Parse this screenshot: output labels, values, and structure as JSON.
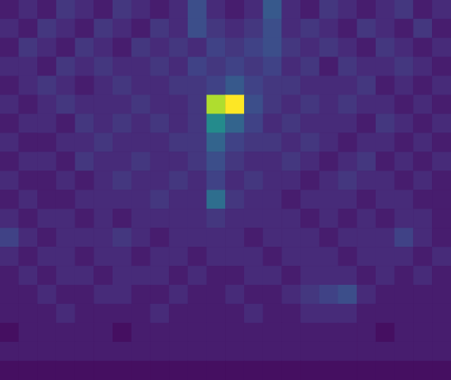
{
  "chart_data": {
    "type": "heatmap",
    "tick_labels": false,
    "zlim": [
      0,
      25
    ],
    "cells": [
      [
        2,
        3,
        2,
        4,
        3,
        2,
        4,
        3,
        2,
        3,
        6,
        3,
        2,
        3,
        7,
        3,
        2,
        4,
        3,
        2,
        3,
        4,
        2,
        3
      ],
      [
        3,
        2,
        4,
        3,
        2,
        4,
        3,
        2,
        4,
        3,
        6,
        4,
        3,
        4,
        6,
        3,
        4,
        3,
        2,
        4,
        3,
        2,
        4,
        2
      ],
      [
        2,
        4,
        3,
        2,
        4,
        3,
        2,
        4,
        3,
        4,
        3,
        5,
        4,
        5,
        6,
        4,
        3,
        4,
        3,
        2,
        4,
        3,
        2,
        3
      ],
      [
        3,
        3,
        2,
        4,
        3,
        4,
        3,
        3,
        4,
        3,
        5,
        4,
        5,
        4,
        5,
        3,
        4,
        2,
        4,
        3,
        3,
        4,
        3,
        2
      ],
      [
        2,
        3,
        4,
        3,
        2,
        3,
        4,
        3,
        3,
        4,
        4,
        5,
        7,
        5,
        4,
        4,
        3,
        3,
        3,
        4,
        2,
        3,
        2,
        3
      ],
      [
        3,
        2,
        3,
        4,
        3,
        3,
        3,
        4,
        3,
        3,
        4,
        22,
        25,
        6,
        4,
        3,
        4,
        3,
        4,
        3,
        3,
        2,
        3,
        2
      ],
      [
        2,
        3,
        3,
        2,
        4,
        3,
        4,
        3,
        4,
        3,
        4,
        12,
        8,
        5,
        3,
        4,
        3,
        3,
        3,
        2,
        4,
        3,
        2,
        3
      ],
      [
        3,
        2,
        2,
        3,
        3,
        4,
        3,
        3,
        3,
        4,
        4,
        8,
        5,
        4,
        4,
        3,
        4,
        3,
        2,
        3,
        3,
        2,
        3,
        2
      ],
      [
        2,
        3,
        3,
        2,
        4,
        3,
        3,
        4,
        3,
        3,
        4,
        6,
        4,
        3,
        3,
        4,
        3,
        2,
        3,
        4,
        2,
        3,
        2,
        3
      ],
      [
        3,
        2,
        2,
        3,
        2,
        3,
        4,
        3,
        3,
        4,
        3,
        5,
        3,
        4,
        3,
        3,
        2,
        3,
        4,
        3,
        3,
        2,
        3,
        2
      ],
      [
        2,
        3,
        2,
        2,
        3,
        3,
        3,
        3,
        4,
        3,
        3,
        9,
        4,
        3,
        3,
        2,
        3,
        3,
        3,
        2,
        3,
        3,
        2,
        2
      ],
      [
        3,
        2,
        3,
        3,
        2,
        3,
        2,
        3,
        3,
        3,
        3,
        4,
        3,
        3,
        3,
        3,
        2,
        3,
        2,
        3,
        2,
        3,
        3,
        2
      ],
      [
        5,
        3,
        2,
        3,
        3,
        3,
        4,
        3,
        2,
        3,
        3,
        3,
        3,
        2,
        3,
        3,
        3,
        2,
        3,
        3,
        3,
        5,
        3,
        2
      ],
      [
        3,
        2,
        3,
        3,
        2,
        3,
        3,
        2,
        3,
        3,
        2,
        3,
        3,
        3,
        2,
        3,
        3,
        3,
        2,
        3,
        3,
        3,
        2,
        3
      ],
      [
        2,
        3,
        2,
        3,
        3,
        2,
        3,
        3,
        3,
        2,
        3,
        2,
        2,
        3,
        3,
        2,
        3,
        3,
        3,
        2,
        3,
        2,
        3,
        2
      ],
      [
        2,
        2,
        3,
        2,
        2,
        3,
        3,
        2,
        2,
        3,
        2,
        2,
        3,
        2,
        2,
        3,
        4,
        5,
        6,
        3,
        2,
        2,
        2,
        2
      ],
      [
        2,
        2,
        2,
        3,
        2,
        2,
        2,
        2,
        3,
        2,
        2,
        2,
        2,
        3,
        2,
        2,
        3,
        3,
        3,
        2,
        2,
        2,
        2,
        2
      ],
      [
        1,
        2,
        2,
        2,
        2,
        2,
        1,
        2,
        2,
        2,
        2,
        2,
        2,
        2,
        2,
        2,
        2,
        2,
        2,
        2,
        1,
        2,
        2,
        2
      ],
      [
        2,
        2,
        2,
        2,
        2,
        2,
        2,
        2,
        2,
        2,
        2,
        2,
        2,
        2,
        2,
        2,
        2,
        2,
        2,
        2,
        2,
        2,
        2,
        2
      ],
      [
        1,
        1,
        1,
        1,
        1,
        1,
        1,
        1,
        1,
        1,
        1,
        1,
        1,
        1,
        1,
        1,
        1,
        1,
        1,
        1,
        1,
        1,
        1,
        1
      ]
    ]
  }
}
